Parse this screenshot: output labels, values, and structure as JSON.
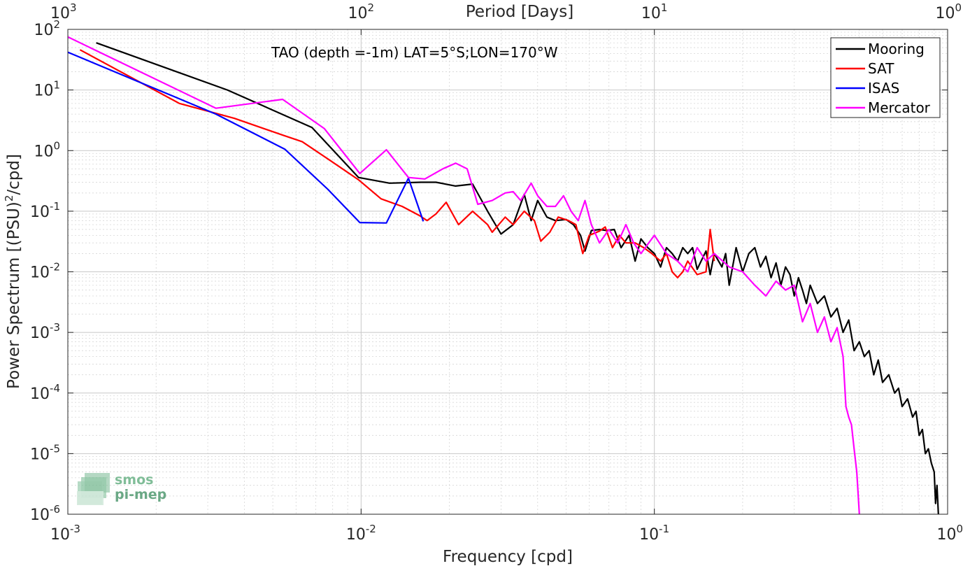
{
  "chart_data": {
    "type": "line",
    "title": "TAO (depth =-1m) LAT=5°S;LON=170°W",
    "xlabel": "Frequency [cpd]",
    "ylabel": "Power Spectrum [(PSU)²/cpd]",
    "ylabel_parts": {
      "pre": "Power Spectrum [(PSU)",
      "sup": "2",
      "post": "/cpd]"
    },
    "x_scale": "log",
    "y_scale": "log",
    "xlim": [
      0.001,
      1
    ],
    "ylim": [
      1e-06,
      100
    ],
    "grid": true,
    "legend_position": "top-right",
    "x_ticks": [
      {
        "value": 0.001,
        "base": "10",
        "exp": "-3"
      },
      {
        "value": 0.01,
        "base": "10",
        "exp": "-2"
      },
      {
        "value": 0.1,
        "base": "10",
        "exp": "-1"
      },
      {
        "value": 1,
        "base": "10",
        "exp": "0"
      }
    ],
    "y_ticks": [
      {
        "value": 100,
        "base": "10",
        "exp": "2"
      },
      {
        "value": 10,
        "base": "10",
        "exp": "1"
      },
      {
        "value": 1,
        "base": "10",
        "exp": "0"
      },
      {
        "value": 0.1,
        "base": "10",
        "exp": "-1"
      },
      {
        "value": 0.01,
        "base": "10",
        "exp": "-2"
      },
      {
        "value": 0.001,
        "base": "10",
        "exp": "-3"
      },
      {
        "value": 0.0001,
        "base": "10",
        "exp": "-4"
      },
      {
        "value": 1e-05,
        "base": "10",
        "exp": "-5"
      },
      {
        "value": 1e-06,
        "base": "10",
        "exp": "-6"
      }
    ],
    "top_axis": {
      "label": "Period [Days]",
      "ticks": [
        {
          "freq": 0.001,
          "base": "10",
          "exp": "3"
        },
        {
          "freq": 0.01,
          "base": "10",
          "exp": "2"
        },
        {
          "freq": 0.1,
          "base": "10",
          "exp": "1"
        },
        {
          "freq": 1,
          "base": "10",
          "exp": "0"
        }
      ]
    },
    "series": [
      {
        "name": "Mooring",
        "color": "#000000",
        "points": [
          [
            0.00125,
            60
          ],
          [
            0.0035,
            10
          ],
          [
            0.0068,
            2.4
          ],
          [
            0.0098,
            0.36
          ],
          [
            0.0125,
            0.29
          ],
          [
            0.016,
            0.3
          ],
          [
            0.018,
            0.3
          ],
          [
            0.021,
            0.26
          ],
          [
            0.024,
            0.28
          ],
          [
            0.027,
            0.1
          ],
          [
            0.03,
            0.042
          ],
          [
            0.033,
            0.06
          ],
          [
            0.036,
            0.19
          ],
          [
            0.038,
            0.07
          ],
          [
            0.04,
            0.15
          ],
          [
            0.043,
            0.08
          ],
          [
            0.046,
            0.07
          ],
          [
            0.05,
            0.073
          ],
          [
            0.053,
            0.06
          ],
          [
            0.056,
            0.04
          ],
          [
            0.058,
            0.022
          ],
          [
            0.061,
            0.048
          ],
          [
            0.065,
            0.05
          ],
          [
            0.069,
            0.048
          ],
          [
            0.073,
            0.05
          ],
          [
            0.077,
            0.025
          ],
          [
            0.082,
            0.04
          ],
          [
            0.086,
            0.015
          ],
          [
            0.09,
            0.035
          ],
          [
            0.095,
            0.025
          ],
          [
            0.1,
            0.02
          ],
          [
            0.105,
            0.012
          ],
          [
            0.11,
            0.025
          ],
          [
            0.115,
            0.02
          ],
          [
            0.12,
            0.015
          ],
          [
            0.125,
            0.025
          ],
          [
            0.13,
            0.02
          ],
          [
            0.135,
            0.025
          ],
          [
            0.14,
            0.011
          ],
          [
            0.15,
            0.022
          ],
          [
            0.155,
            0.009
          ],
          [
            0.16,
            0.02
          ],
          [
            0.17,
            0.012
          ],
          [
            0.175,
            0.02
          ],
          [
            0.18,
            0.006
          ],
          [
            0.19,
            0.025
          ],
          [
            0.2,
            0.01
          ],
          [
            0.21,
            0.02
          ],
          [
            0.22,
            0.025
          ],
          [
            0.23,
            0.012
          ],
          [
            0.24,
            0.018
          ],
          [
            0.25,
            0.008
          ],
          [
            0.26,
            0.014
          ],
          [
            0.27,
            0.006
          ],
          [
            0.28,
            0.012
          ],
          [
            0.29,
            0.009
          ],
          [
            0.3,
            0.004
          ],
          [
            0.31,
            0.008
          ],
          [
            0.32,
            0.005
          ],
          [
            0.33,
            0.003
          ],
          [
            0.34,
            0.006
          ],
          [
            0.36,
            0.003
          ],
          [
            0.38,
            0.004
          ],
          [
            0.4,
            0.0018
          ],
          [
            0.42,
            0.0025
          ],
          [
            0.44,
            0.001
          ],
          [
            0.46,
            0.0016
          ],
          [
            0.48,
            0.0005
          ],
          [
            0.5,
            0.0007
          ],
          [
            0.52,
            0.0004
          ],
          [
            0.54,
            0.0005
          ],
          [
            0.56,
            0.0002
          ],
          [
            0.58,
            0.00035
          ],
          [
            0.6,
            0.00015
          ],
          [
            0.63,
            0.0002
          ],
          [
            0.66,
            0.0001
          ],
          [
            0.68,
            0.00012
          ],
          [
            0.7,
            6e-05
          ],
          [
            0.73,
            8e-05
          ],
          [
            0.76,
            4e-05
          ],
          [
            0.78,
            5e-05
          ],
          [
            0.8,
            2e-05
          ],
          [
            0.82,
            2.5e-05
          ],
          [
            0.84,
            1e-05
          ],
          [
            0.86,
            1.2e-05
          ],
          [
            0.88,
            7e-06
          ],
          [
            0.9,
            5e-06
          ],
          [
            0.91,
            1.5e-06
          ],
          [
            0.92,
            3e-06
          ],
          [
            0.93,
            1e-06
          ]
        ]
      },
      {
        "name": "SAT",
        "color": "#ff0000",
        "points": [
          [
            0.0011,
            46
          ],
          [
            0.0024,
            6
          ],
          [
            0.0037,
            3.4
          ],
          [
            0.0054,
            1.8
          ],
          [
            0.0063,
            1.4
          ],
          [
            0.0078,
            0.7
          ],
          [
            0.0098,
            0.33
          ],
          [
            0.0117,
            0.16
          ],
          [
            0.0138,
            0.12
          ],
          [
            0.0158,
            0.085
          ],
          [
            0.0168,
            0.07
          ],
          [
            0.018,
            0.09
          ],
          [
            0.0195,
            0.14
          ],
          [
            0.0215,
            0.06
          ],
          [
            0.024,
            0.1
          ],
          [
            0.027,
            0.06
          ],
          [
            0.028,
            0.045
          ],
          [
            0.031,
            0.08
          ],
          [
            0.033,
            0.06
          ],
          [
            0.036,
            0.1
          ],
          [
            0.039,
            0.07
          ],
          [
            0.041,
            0.032
          ],
          [
            0.044,
            0.045
          ],
          [
            0.047,
            0.08
          ],
          [
            0.051,
            0.07
          ],
          [
            0.054,
            0.06
          ],
          [
            0.057,
            0.02
          ],
          [
            0.06,
            0.04
          ],
          [
            0.065,
            0.047
          ],
          [
            0.068,
            0.055
          ],
          [
            0.072,
            0.025
          ],
          [
            0.076,
            0.04
          ],
          [
            0.08,
            0.03
          ],
          [
            0.086,
            0.03
          ],
          [
            0.092,
            0.025
          ],
          [
            0.098,
            0.02
          ],
          [
            0.105,
            0.015
          ],
          [
            0.11,
            0.02
          ],
          [
            0.115,
            0.01
          ],
          [
            0.12,
            0.008
          ],
          [
            0.125,
            0.01
          ],
          [
            0.13,
            0.015
          ],
          [
            0.14,
            0.009
          ],
          [
            0.15,
            0.01
          ],
          [
            0.155,
            0.05
          ],
          [
            0.16,
            0.015
          ]
        ]
      },
      {
        "name": "ISAS",
        "color": "#0000ff",
        "points": [
          [
            0.001,
            42
          ],
          [
            0.0032,
            4
          ],
          [
            0.0055,
            1.05
          ],
          [
            0.0077,
            0.23
          ],
          [
            0.0099,
            0.065
          ],
          [
            0.0122,
            0.064
          ],
          [
            0.0145,
            0.35
          ],
          [
            0.0163,
            0.068
          ]
        ]
      },
      {
        "name": "Mercator",
        "color": "#ff00ff",
        "points": [
          [
            0.001,
            75
          ],
          [
            0.0032,
            5
          ],
          [
            0.0054,
            7
          ],
          [
            0.0075,
            2.3
          ],
          [
            0.0099,
            0.42
          ],
          [
            0.0122,
            1.03
          ],
          [
            0.0145,
            0.36
          ],
          [
            0.0165,
            0.34
          ],
          [
            0.019,
            0.5
          ],
          [
            0.021,
            0.62
          ],
          [
            0.023,
            0.5
          ],
          [
            0.025,
            0.13
          ],
          [
            0.028,
            0.15
          ],
          [
            0.031,
            0.2
          ],
          [
            0.033,
            0.21
          ],
          [
            0.035,
            0.15
          ],
          [
            0.038,
            0.29
          ],
          [
            0.04,
            0.18
          ],
          [
            0.043,
            0.12
          ],
          [
            0.046,
            0.12
          ],
          [
            0.049,
            0.18
          ],
          [
            0.052,
            0.1
          ],
          [
            0.055,
            0.07
          ],
          [
            0.058,
            0.15
          ],
          [
            0.061,
            0.06
          ],
          [
            0.065,
            0.03
          ],
          [
            0.07,
            0.05
          ],
          [
            0.075,
            0.03
          ],
          [
            0.08,
            0.06
          ],
          [
            0.085,
            0.03
          ],
          [
            0.09,
            0.02
          ],
          [
            0.1,
            0.04
          ],
          [
            0.11,
            0.02
          ],
          [
            0.12,
            0.015
          ],
          [
            0.13,
            0.01
          ],
          [
            0.14,
            0.025
          ],
          [
            0.15,
            0.015
          ],
          [
            0.16,
            0.02
          ],
          [
            0.18,
            0.012
          ],
          [
            0.2,
            0.01
          ],
          [
            0.22,
            0.006
          ],
          [
            0.24,
            0.004
          ],
          [
            0.26,
            0.007
          ],
          [
            0.28,
            0.005
          ],
          [
            0.3,
            0.006
          ],
          [
            0.32,
            0.0015
          ],
          [
            0.34,
            0.003
          ],
          [
            0.36,
            0.001
          ],
          [
            0.38,
            0.0018
          ],
          [
            0.4,
            0.0007
          ],
          [
            0.42,
            0.0012
          ],
          [
            0.44,
            0.0004
          ],
          [
            0.45,
            6e-05
          ],
          [
            0.46,
            4e-05
          ],
          [
            0.47,
            3e-05
          ],
          [
            0.48,
            1.2e-05
          ],
          [
            0.49,
            5e-06
          ],
          [
            0.5,
            1e-06
          ]
        ]
      }
    ]
  },
  "logo": {
    "line1": "smos",
    "line2": "pi-mep"
  }
}
